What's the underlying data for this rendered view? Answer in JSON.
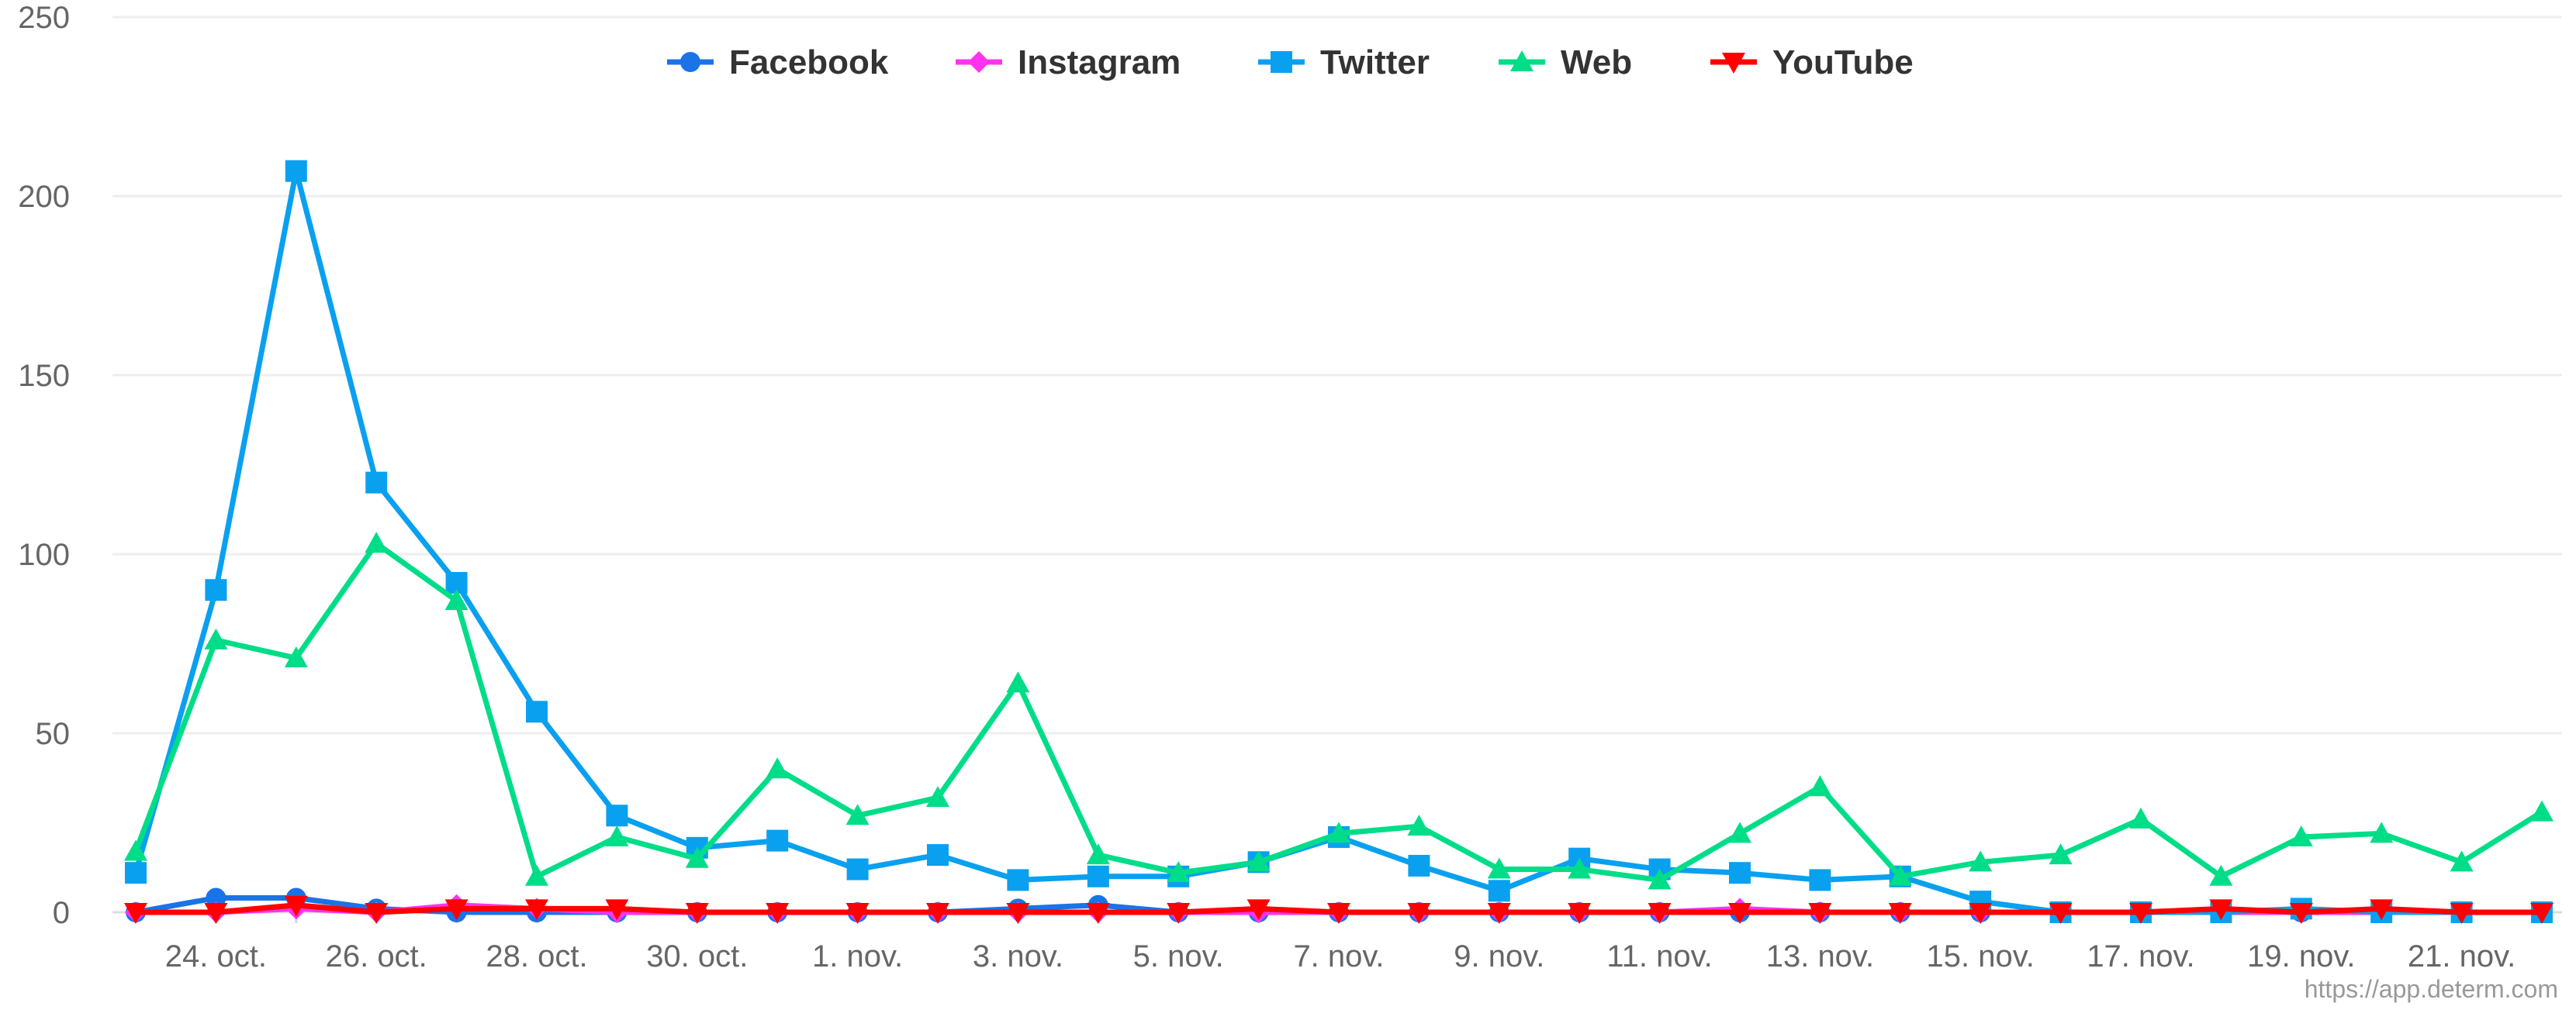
{
  "chart_data": {
    "type": "line",
    "title": "",
    "xlabel": "",
    "ylabel": "",
    "ylim": [
      0,
      250
    ],
    "yticks": [
      0,
      50,
      100,
      150,
      200,
      250
    ],
    "x": [
      "23. oct.",
      "24. oct.",
      "25. oct.",
      "26. oct.",
      "27. oct.",
      "28. oct.",
      "29. oct.",
      "30. oct.",
      "31. oct.",
      "1. nov.",
      "2. nov.",
      "3. nov.",
      "4. nov.",
      "5. nov.",
      "6. nov.",
      "7. nov.",
      "8. nov.",
      "9. nov.",
      "10. nov.",
      "11. nov.",
      "12. nov.",
      "13. nov.",
      "14. nov.",
      "15. nov.",
      "16. nov.",
      "17. nov.",
      "18. nov.",
      "19. nov.",
      "20. nov.",
      "21. nov.",
      "22. nov."
    ],
    "xtick_labels": [
      "24. oct.",
      "26. oct.",
      "28. oct.",
      "30. oct.",
      "1. nov.",
      "3. nov.",
      "5. nov.",
      "7. nov.",
      "9. nov.",
      "11. nov.",
      "13. nov.",
      "15. nov.",
      "17. nov.",
      "19. nov.",
      "21. nov."
    ],
    "legend_position": "top-center",
    "series": [
      {
        "name": "Facebook",
        "color": "#1a73e8",
        "marker": "circle",
        "values": [
          0,
          4,
          4,
          1,
          0,
          0,
          0,
          0,
          0,
          0,
          0,
          1,
          2,
          0,
          0,
          0,
          0,
          0,
          0,
          0,
          0,
          0,
          0,
          0,
          0,
          0,
          0,
          0,
          0,
          0,
          0
        ]
      },
      {
        "name": "Instagram",
        "color": "#ff33ee",
        "marker": "diamond",
        "values": [
          0,
          0,
          1,
          0,
          2,
          1,
          0,
          0,
          0,
          0,
          0,
          0,
          0,
          0,
          0,
          0,
          0,
          0,
          0,
          0,
          1,
          0,
          0,
          0,
          0,
          0,
          0,
          0,
          0,
          0,
          0
        ]
      },
      {
        "name": "Twitter",
        "color": "#0aa0f0",
        "marker": "square",
        "values": [
          11,
          90,
          207,
          120,
          92,
          56,
          27,
          18,
          20,
          12,
          16,
          9,
          10,
          10,
          14,
          21,
          13,
          6,
          15,
          12,
          11,
          9,
          10,
          3,
          0,
          0,
          0,
          1,
          0,
          0,
          0
        ]
      },
      {
        "name": "Web",
        "color": "#00dd88",
        "marker": "triangle-up",
        "values": [
          17,
          76,
          71,
          103,
          87,
          10,
          21,
          15,
          40,
          27,
          32,
          64,
          16,
          11,
          14,
          22,
          24,
          12,
          12,
          9,
          22,
          35,
          10,
          14,
          16,
          26,
          10,
          21,
          22,
          14,
          28
        ]
      },
      {
        "name": "YouTube",
        "color": "#ff0000",
        "marker": "triangle-down",
        "values": [
          0,
          0,
          2,
          0,
          1,
          1,
          1,
          0,
          0,
          0,
          0,
          0,
          0,
          0,
          1,
          0,
          0,
          0,
          0,
          0,
          0,
          0,
          0,
          0,
          0,
          0,
          1,
          0,
          1,
          0,
          0
        ]
      }
    ]
  },
  "credit": "https://app.determ.com"
}
